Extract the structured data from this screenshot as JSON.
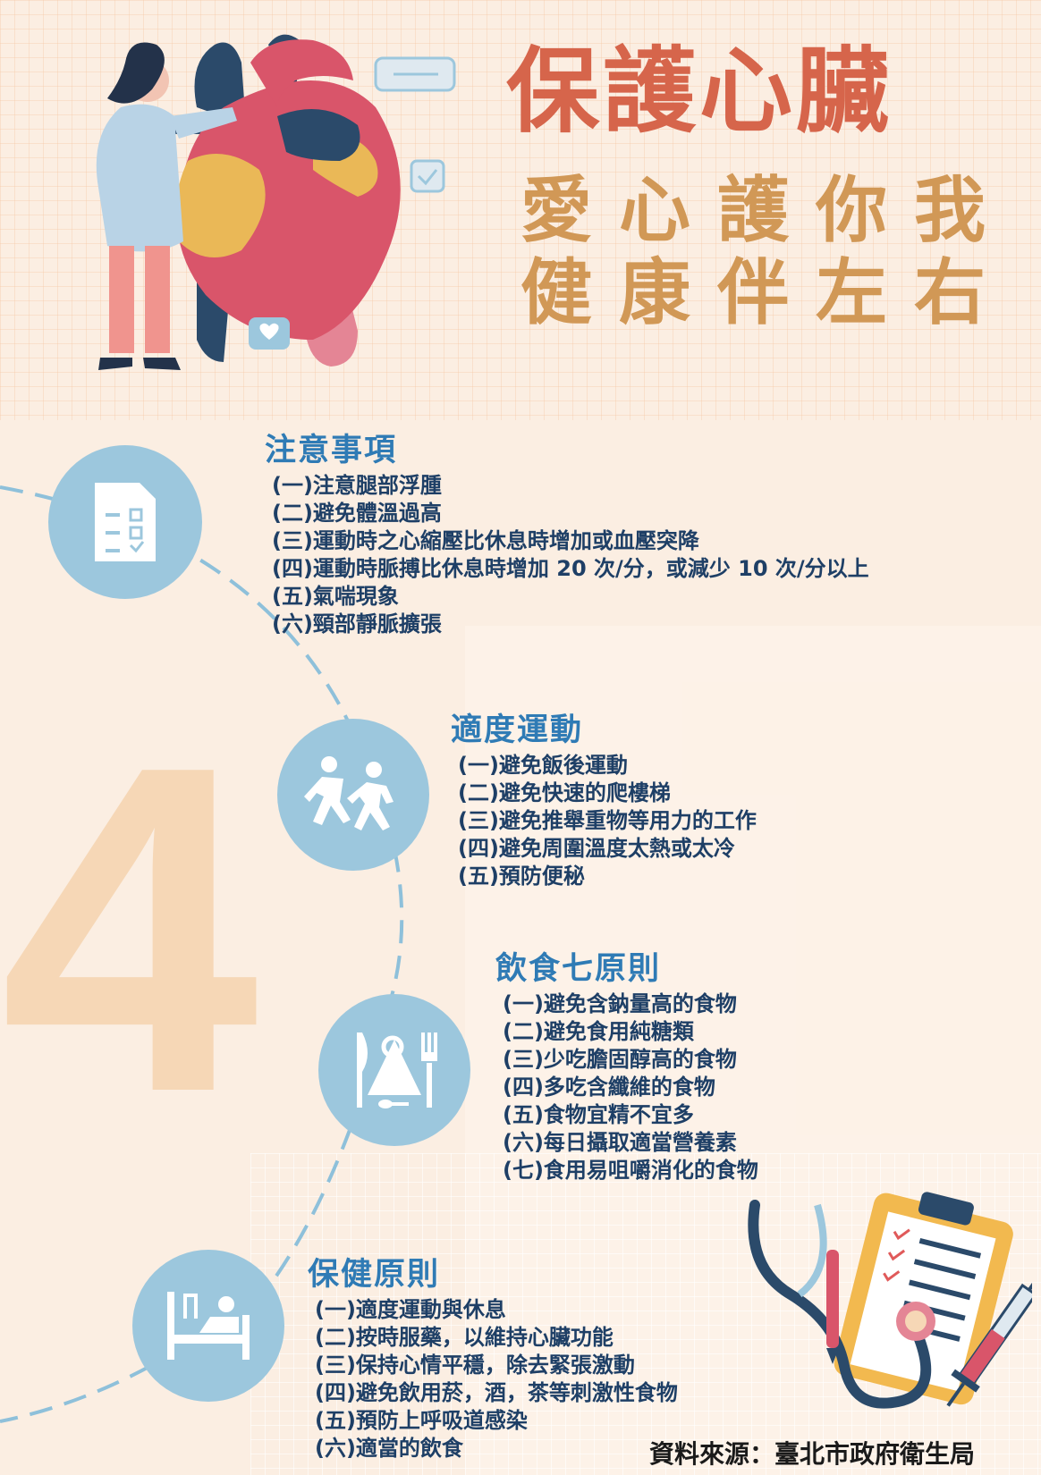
{
  "header": {
    "title": "保護心臟",
    "subtitle_lines": [
      "愛心護你我",
      "健康伴左右"
    ]
  },
  "sections": [
    {
      "title": "注意事項",
      "icon": "checklist-icon",
      "items": [
        "(一)注意腿部浮腫",
        "(二)避免體溫過高",
        "(三)運動時之心縮壓比休息時增加或血壓突降",
        "(四)運動時脈搏比休息時增加 20 次/分，或減少 10 次/分以上",
        "(五)氣喘現象",
        "(六)頸部靜脈擴張"
      ]
    },
    {
      "title": "適度運動",
      "icon": "running-people-icon",
      "items": [
        "(一)避免飯後運動",
        "(二)避免快速的爬樓梯",
        "(三)避免推舉重物等用力的工作",
        "(四)避免周圍溫度太熱或太冷",
        "(五)預防便秘"
      ]
    },
    {
      "title": "飲食七原則",
      "icon": "dining-icon",
      "items": [
        "(一)避免含鈉量高的食物",
        "(二)避免食用純糖類",
        "(三)少吃膽固醇高的食物",
        "(四)多吃含纖維的食物",
        "(五)食物宜精不宜多",
        "(六)每日攝取適當營養素",
        "(七)食用易咀嚼消化的食物"
      ]
    },
    {
      "title": "保健原則",
      "icon": "hospital-bed-icon",
      "items": [
        "(一)適度運動與休息",
        "(二)按時服藥，以維持心臟功能",
        "(三)保持心情平穩，除去緊張激動",
        "(四)避免飲用菸，酒，茶等刺激性食物",
        "(五)預防上呼吸道感染",
        "(六)適當的飲食"
      ]
    }
  ],
  "decor": {
    "big_number": "4"
  },
  "footer": {
    "source": "資料來源：臺北市政府衛生局"
  },
  "colors": {
    "background": "#fbeee2",
    "title": "#d6654b",
    "subtitle": "#d19856",
    "section_title": "#2f7bb5",
    "body_text": "#1e3f66",
    "icon_circle": "#9cc7dd",
    "heart": "#d9556a",
    "big_number": "#f6d7b6"
  }
}
